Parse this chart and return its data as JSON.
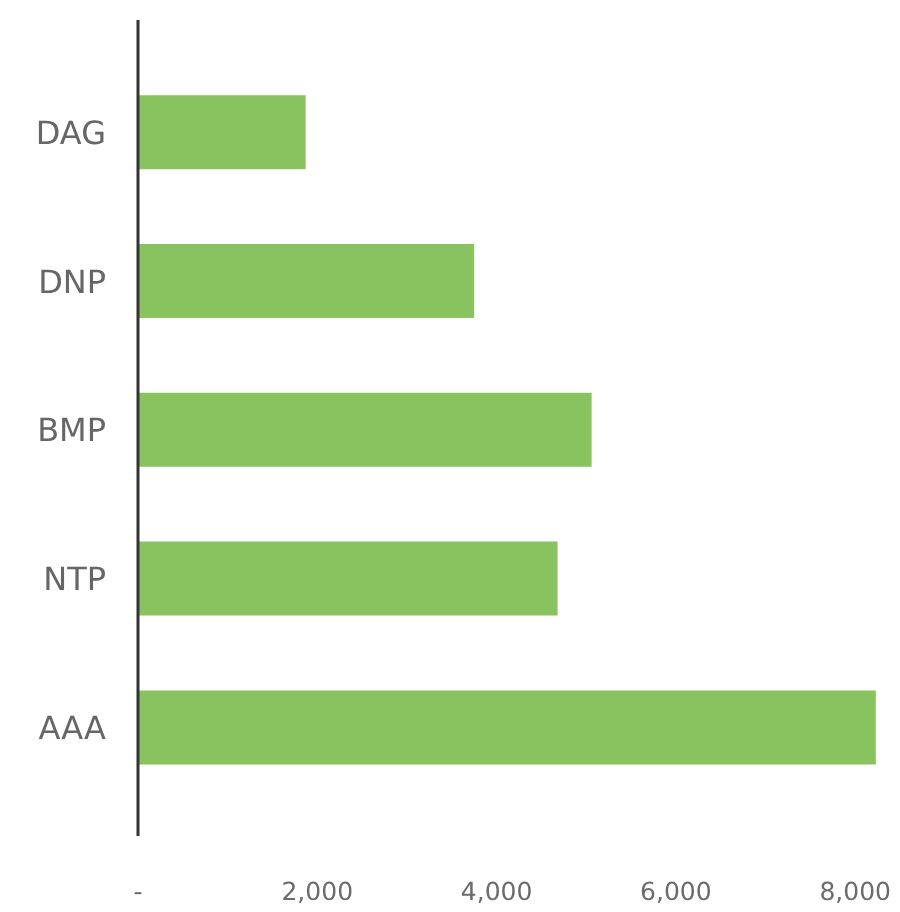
{
  "chart_data": {
    "type": "bar",
    "orientation": "horizontal",
    "categories": [
      "DAG",
      "DNP",
      "BMP",
      "NTP",
      "AAA"
    ],
    "values": [
      1870,
      3750,
      5060,
      4680,
      8230
    ],
    "color": "#88c35f",
    "xlim": [
      0,
      8500
    ],
    "xticks": [
      {
        "value": 0,
        "label": "-"
      },
      {
        "value": 2000,
        "label": "2,000"
      },
      {
        "value": 4000,
        "label": "4,000"
      },
      {
        "value": 6000,
        "label": "6,000"
      },
      {
        "value": 8000,
        "label": "8,000"
      }
    ]
  }
}
